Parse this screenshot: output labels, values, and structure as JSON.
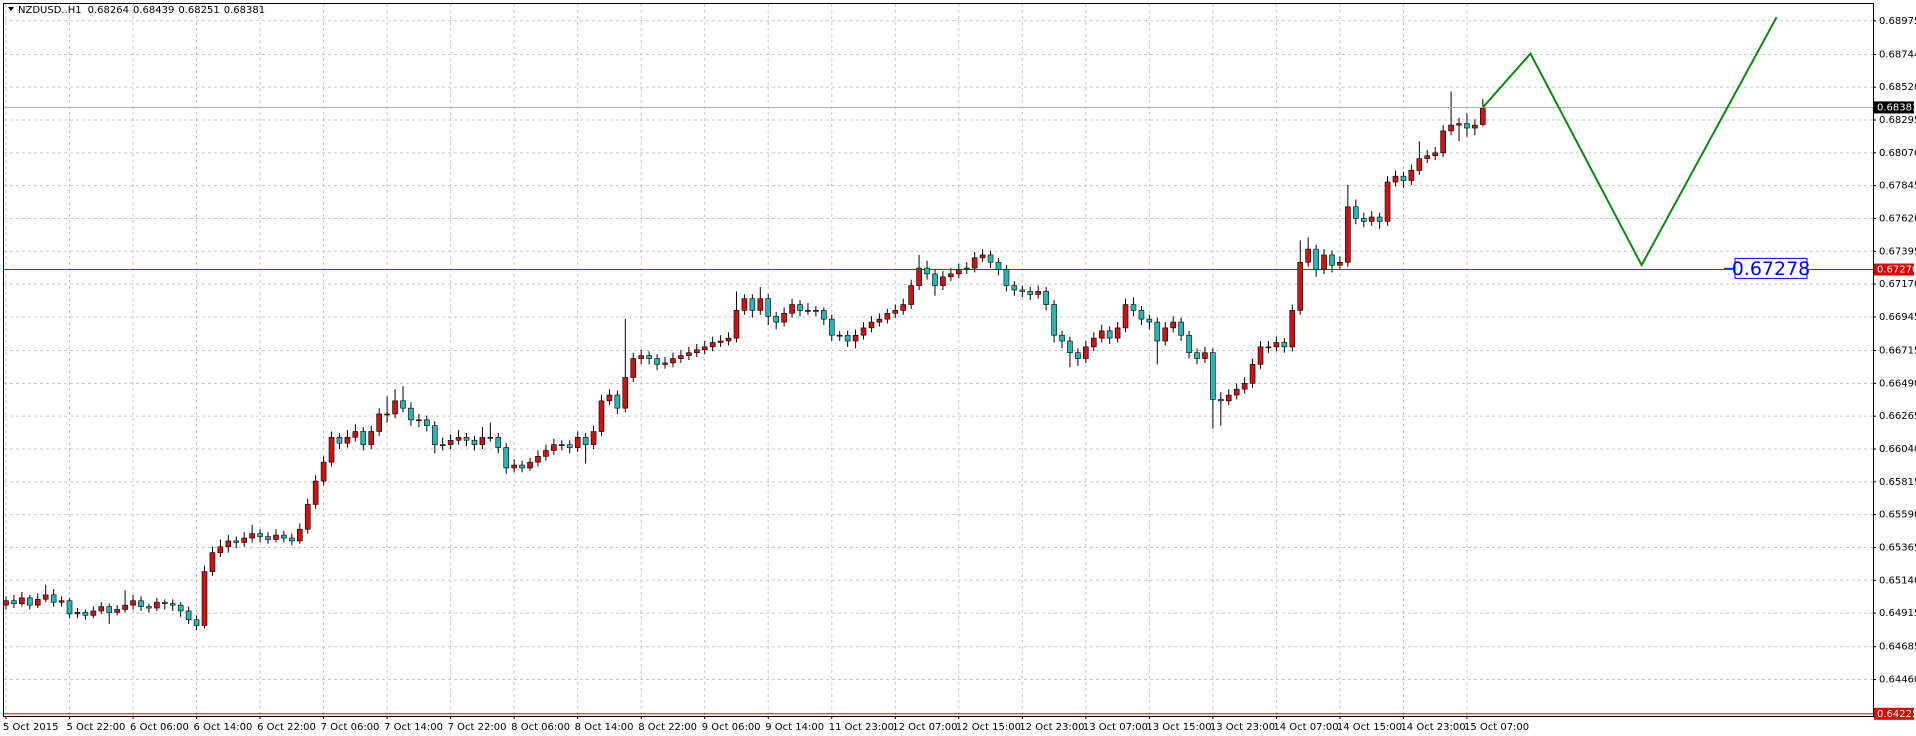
{
  "chart_data": {
    "type": "candlestick",
    "title": "NZDUSD..H1",
    "bull_color": "#c81414",
    "bear_color": "#2ab5b5",
    "grid": true,
    "ylim": [
      0.6421,
      0.6909
    ],
    "yticks": [
      0.68975,
      0.68744,
      {
        "value": 0.6852,
        "label": "0.68520"
      },
      0.68295,
      {
        "value": 0.6807,
        "label": "0.68070"
      },
      0.67845,
      {
        "value": 0.6762,
        "label": "0.67620"
      },
      0.67395,
      {
        "value": 0.6717,
        "label": "0.67170"
      },
      0.66945,
      0.66715,
      {
        "value": 0.6649,
        "label": "0.66490"
      },
      0.66265,
      {
        "value": 0.6604,
        "label": "0.66040"
      },
      0.65815,
      {
        "value": 0.6559,
        "label": "0.65590"
      },
      0.65365,
      {
        "value": 0.6514,
        "label": "0.65140"
      },
      0.64915,
      0.64685,
      {
        "value": 0.6446,
        "label": "0.64460"
      }
    ],
    "levels": [
      {
        "value": 0.6727,
        "label": "0.67270",
        "color": "#e00000"
      },
      {
        "value": 0.64225,
        "color": "#e00000"
      }
    ],
    "price_label": {
      "value": 0.67278,
      "color": "#0000ff"
    },
    "projection": {
      "x": [
        186,
        192,
        206,
        223
      ],
      "values": [
        0.68381,
        0.6875,
        0.673,
        0.69
      ],
      "color": "#0a8a0a"
    },
    "categories": [
      "5 Oct 2015",
      null,
      null,
      null,
      null,
      null,
      null,
      null,
      "5 Oct 22:00",
      null,
      null,
      null,
      null,
      null,
      null,
      null,
      "6 Oct 06:00",
      null,
      null,
      null,
      null,
      null,
      null,
      null,
      "6 Oct 14:00",
      null,
      null,
      null,
      null,
      null,
      null,
      null,
      "6 Oct 22:00",
      null,
      null,
      null,
      null,
      null,
      null,
      null,
      "7 Oct 06:00",
      null,
      null,
      null,
      null,
      null,
      null,
      null,
      "7 Oct 14:00",
      null,
      null,
      null,
      null,
      null,
      null,
      null,
      "7 Oct 22:00",
      null,
      null,
      null,
      null,
      null,
      null,
      null,
      "8 Oct 06:00",
      null,
      null,
      null,
      null,
      null,
      null,
      null,
      "8 Oct 14:00",
      null,
      null,
      null,
      null,
      null,
      null,
      null,
      "8 Oct 22:00",
      null,
      null,
      null,
      null,
      null,
      null,
      null,
      "9 Oct 06:00",
      null,
      null,
      null,
      null,
      null,
      null,
      null,
      "9 Oct 14:00",
      null,
      null,
      null,
      null,
      null,
      null,
      null,
      "11 Oct 23:00",
      null,
      null,
      null,
      null,
      null,
      null,
      null,
      "12 Oct 07:00",
      null,
      null,
      null,
      null,
      null,
      null,
      null,
      "12 Oct 15:00",
      null,
      null,
      null,
      null,
      null,
      null,
      null,
      "12 Oct 23:00",
      null,
      null,
      null,
      null,
      null,
      null,
      null,
      "13 Oct 07:00",
      null,
      null,
      null,
      null,
      null,
      null,
      null,
      "13 Oct 15:00",
      null,
      null,
      null,
      null,
      null,
      null,
      null,
      "13 Oct 23:00",
      null,
      null,
      null,
      null,
      null,
      null,
      null,
      "14 Oct 07:00",
      null,
      null,
      null,
      null,
      null,
      null,
      null,
      "14 Oct 15:00",
      null,
      null,
      null,
      null,
      null,
      null,
      null,
      "14 Oct 23:00",
      null,
      null,
      null,
      null,
      null,
      null,
      null,
      "15 Oct 07:00",
      null,
      null
    ],
    "candles": [
      [
        0.6497,
        0.6503,
        0.6494,
        0.65
      ],
      [
        0.65,
        0.6504,
        0.6495,
        0.6498
      ],
      [
        0.6498,
        0.6506,
        0.6496,
        0.6502
      ],
      [
        0.6502,
        0.6504,
        0.6494,
        0.6497
      ],
      [
        0.6497,
        0.6505,
        0.6495,
        0.6501
      ],
      [
        0.6501,
        0.6511,
        0.6499,
        0.6504
      ],
      [
        0.6504,
        0.6508,
        0.6496,
        0.6499
      ],
      [
        0.6499,
        0.6503,
        0.6496,
        0.65
      ],
      [
        0.65,
        0.6502,
        0.6488,
        0.6491
      ],
      [
        0.6491,
        0.6495,
        0.6488,
        0.6492
      ],
      [
        0.6492,
        0.6494,
        0.6487,
        0.649
      ],
      [
        0.649,
        0.6496,
        0.6488,
        0.6493
      ],
      [
        0.6493,
        0.6499,
        0.6491,
        0.6496
      ],
      [
        0.6496,
        0.6498,
        0.6484,
        0.6492
      ],
      [
        0.6492,
        0.6497,
        0.649,
        0.6494
      ],
      [
        0.6494,
        0.6507,
        0.6492,
        0.6497
      ],
      [
        0.6497,
        0.6504,
        0.6494,
        0.65
      ],
      [
        0.65,
        0.6503,
        0.6493,
        0.6496
      ],
      [
        0.6496,
        0.6498,
        0.6492,
        0.6495
      ],
      [
        0.6495,
        0.6502,
        0.6493,
        0.6499
      ],
      [
        0.6499,
        0.6501,
        0.6494,
        0.6498
      ],
      [
        0.6498,
        0.6501,
        0.6493,
        0.6497
      ],
      [
        0.6497,
        0.6499,
        0.6489,
        0.6493
      ],
      [
        0.6493,
        0.6496,
        0.6484,
        0.6487
      ],
      [
        0.6487,
        0.649,
        0.648,
        0.6483
      ],
      [
        0.6483,
        0.6524,
        0.6481,
        0.652
      ],
      [
        0.652,
        0.6537,
        0.6517,
        0.6533
      ],
      [
        0.6533,
        0.6542,
        0.653,
        0.6537
      ],
      [
        0.6537,
        0.6545,
        0.6533,
        0.6541
      ],
      [
        0.6541,
        0.6544,
        0.6536,
        0.654
      ],
      [
        0.654,
        0.6547,
        0.6537,
        0.6543
      ],
      [
        0.6543,
        0.6552,
        0.654,
        0.6546
      ],
      [
        0.6546,
        0.6549,
        0.654,
        0.6544
      ],
      [
        0.6544,
        0.6547,
        0.6539,
        0.6542
      ],
      [
        0.6542,
        0.6549,
        0.654,
        0.6545
      ],
      [
        0.6545,
        0.6548,
        0.654,
        0.6543
      ],
      [
        0.6543,
        0.6546,
        0.6538,
        0.6541
      ],
      [
        0.6541,
        0.6553,
        0.6539,
        0.6549
      ],
      [
        0.6549,
        0.657,
        0.6546,
        0.6566
      ],
      [
        0.6566,
        0.6586,
        0.6563,
        0.6582
      ],
      [
        0.6582,
        0.6599,
        0.6579,
        0.6595
      ],
      [
        0.6595,
        0.6616,
        0.6592,
        0.6612
      ],
      [
        0.6612,
        0.6615,
        0.6604,
        0.6608
      ],
      [
        0.6608,
        0.6617,
        0.6605,
        0.6612
      ],
      [
        0.6612,
        0.6621,
        0.6609,
        0.6616
      ],
      [
        0.6616,
        0.6619,
        0.6603,
        0.6607
      ],
      [
        0.6607,
        0.662,
        0.6604,
        0.6616
      ],
      [
        0.6616,
        0.6632,
        0.6613,
        0.6628
      ],
      [
        0.6628,
        0.664,
        0.6622,
        0.6628
      ],
      [
        0.6628,
        0.6645,
        0.6625,
        0.6637
      ],
      [
        0.6637,
        0.6647,
        0.6629,
        0.6632
      ],
      [
        0.6632,
        0.6636,
        0.662,
        0.6624
      ],
      [
        0.6624,
        0.6628,
        0.6619,
        0.6624
      ],
      [
        0.6624,
        0.6627,
        0.6616,
        0.662
      ],
      [
        0.662,
        0.6623,
        0.6601,
        0.6607
      ],
      [
        0.6607,
        0.6612,
        0.6603,
        0.6607
      ],
      [
        0.6607,
        0.6614,
        0.6604,
        0.661
      ],
      [
        0.661,
        0.6617,
        0.6607,
        0.6612
      ],
      [
        0.6612,
        0.6615,
        0.6606,
        0.661
      ],
      [
        0.661,
        0.6613,
        0.6603,
        0.6607
      ],
      [
        0.6607,
        0.6619,
        0.6604,
        0.6612
      ],
      [
        0.6612,
        0.6622,
        0.6609,
        0.6612
      ],
      [
        0.6612,
        0.6615,
        0.6601,
        0.6605
      ],
      [
        0.6605,
        0.6608,
        0.6587,
        0.6591
      ],
      [
        0.6591,
        0.6597,
        0.6588,
        0.6593
      ],
      [
        0.6593,
        0.6596,
        0.6588,
        0.6591
      ],
      [
        0.6591,
        0.6598,
        0.6589,
        0.6595
      ],
      [
        0.6595,
        0.6603,
        0.6592,
        0.6599
      ],
      [
        0.6599,
        0.6607,
        0.6596,
        0.6603
      ],
      [
        0.6603,
        0.6611,
        0.66,
        0.6607
      ],
      [
        0.6607,
        0.661,
        0.6603,
        0.6607
      ],
      [
        0.6607,
        0.661,
        0.6601,
        0.6605
      ],
      [
        0.6605,
        0.6616,
        0.6602,
        0.6612
      ],
      [
        0.6612,
        0.6615,
        0.6594,
        0.6607
      ],
      [
        0.6607,
        0.662,
        0.6604,
        0.6616
      ],
      [
        0.6616,
        0.6641,
        0.6613,
        0.6637
      ],
      [
        0.6637,
        0.6645,
        0.6634,
        0.6641
      ],
      [
        0.6641,
        0.6644,
        0.6628,
        0.6632
      ],
      [
        0.6632,
        0.6693,
        0.6629,
        0.6653
      ],
      [
        0.6653,
        0.667,
        0.665,
        0.6666
      ],
      [
        0.6666,
        0.6672,
        0.6662,
        0.6668
      ],
      [
        0.6668,
        0.6671,
        0.6662,
        0.6666
      ],
      [
        0.6666,
        0.6669,
        0.6658,
        0.6662
      ],
      [
        0.6662,
        0.6667,
        0.6659,
        0.6663
      ],
      [
        0.6663,
        0.667,
        0.666,
        0.6666
      ],
      [
        0.6666,
        0.6672,
        0.6663,
        0.6668
      ],
      [
        0.6668,
        0.6674,
        0.6665,
        0.667
      ],
      [
        0.667,
        0.6676,
        0.6667,
        0.6672
      ],
      [
        0.6672,
        0.6678,
        0.6669,
        0.6674
      ],
      [
        0.6674,
        0.6681,
        0.6671,
        0.6677
      ],
      [
        0.6677,
        0.6682,
        0.6674,
        0.6678
      ],
      [
        0.6678,
        0.6684,
        0.6675,
        0.668
      ],
      [
        0.668,
        0.6712,
        0.6677,
        0.6699
      ],
      [
        0.6699,
        0.671,
        0.6696,
        0.6707
      ],
      [
        0.6707,
        0.671,
        0.6694,
        0.6699
      ],
      [
        0.6699,
        0.6715,
        0.6696,
        0.6707
      ],
      [
        0.6707,
        0.671,
        0.6689,
        0.6695
      ],
      [
        0.6695,
        0.6698,
        0.6686,
        0.6691
      ],
      [
        0.6691,
        0.6701,
        0.6688,
        0.6697
      ],
      [
        0.6697,
        0.6707,
        0.6694,
        0.6703
      ],
      [
        0.6703,
        0.6706,
        0.6695,
        0.6699
      ],
      [
        0.6699,
        0.6704,
        0.6696,
        0.6699
      ],
      [
        0.6699,
        0.6702,
        0.6695,
        0.6699
      ],
      [
        0.6699,
        0.6701,
        0.6689,
        0.6693
      ],
      [
        0.6693,
        0.6696,
        0.6678,
        0.6682
      ],
      [
        0.6682,
        0.6685,
        0.6678,
        0.6682
      ],
      [
        0.6682,
        0.6685,
        0.6674,
        0.6678
      ],
      [
        0.6678,
        0.6686,
        0.6673,
        0.6682
      ],
      [
        0.6682,
        0.6691,
        0.6679,
        0.6687
      ],
      [
        0.6687,
        0.6695,
        0.6684,
        0.6691
      ],
      [
        0.6691,
        0.6697,
        0.6688,
        0.6693
      ],
      [
        0.6693,
        0.67,
        0.669,
        0.6697
      ],
      [
        0.6697,
        0.6703,
        0.6694,
        0.6699
      ],
      [
        0.6699,
        0.6707,
        0.6696,
        0.6703
      ],
      [
        0.6703,
        0.672,
        0.67,
        0.6716
      ],
      [
        0.6716,
        0.6737,
        0.6713,
        0.6728
      ],
      [
        0.6728,
        0.6733,
        0.672,
        0.6724
      ],
      [
        0.6724,
        0.6727,
        0.6709,
        0.6716
      ],
      [
        0.6716,
        0.6726,
        0.6713,
        0.6722
      ],
      [
        0.6722,
        0.6728,
        0.6719,
        0.6724
      ],
      [
        0.6724,
        0.6731,
        0.6721,
        0.6727
      ],
      [
        0.6727,
        0.6732,
        0.6724,
        0.6728
      ],
      [
        0.6728,
        0.6739,
        0.6725,
        0.6735
      ],
      [
        0.6735,
        0.6741,
        0.6732,
        0.6737
      ],
      [
        0.6737,
        0.674,
        0.6728,
        0.6732
      ],
      [
        0.6732,
        0.6735,
        0.6723,
        0.6727
      ],
      [
        0.6727,
        0.673,
        0.6712,
        0.6716
      ],
      [
        0.6716,
        0.6719,
        0.6709,
        0.6713
      ],
      [
        0.6713,
        0.6716,
        0.6708,
        0.6712
      ],
      [
        0.6712,
        0.6715,
        0.6706,
        0.671
      ],
      [
        0.671,
        0.6716,
        0.6707,
        0.6712
      ],
      [
        0.6712,
        0.6715,
        0.6699,
        0.6703
      ],
      [
        0.6703,
        0.6706,
        0.6677,
        0.6682
      ],
      [
        0.6682,
        0.6685,
        0.6673,
        0.6678
      ],
      [
        0.6678,
        0.6681,
        0.666,
        0.667
      ],
      [
        0.667,
        0.6673,
        0.6661,
        0.6666
      ],
      [
        0.6666,
        0.6678,
        0.6663,
        0.6674
      ],
      [
        0.6674,
        0.6684,
        0.6671,
        0.668
      ],
      [
        0.668,
        0.6689,
        0.6677,
        0.6685
      ],
      [
        0.6685,
        0.6688,
        0.6676,
        0.668
      ],
      [
        0.668,
        0.6691,
        0.6677,
        0.6687
      ],
      [
        0.6687,
        0.6707,
        0.6684,
        0.6703
      ],
      [
        0.6703,
        0.6708,
        0.6695,
        0.6699
      ],
      [
        0.6699,
        0.6702,
        0.6689,
        0.6693
      ],
      [
        0.6693,
        0.6696,
        0.6686,
        0.6691
      ],
      [
        0.6691,
        0.6694,
        0.6662,
        0.6678
      ],
      [
        0.6678,
        0.6691,
        0.6675,
        0.6687
      ],
      [
        0.6687,
        0.6695,
        0.6684,
        0.6691
      ],
      [
        0.6691,
        0.6694,
        0.6678,
        0.6682
      ],
      [
        0.6682,
        0.6685,
        0.6666,
        0.667
      ],
      [
        0.667,
        0.6673,
        0.6662,
        0.6666
      ],
      [
        0.6666,
        0.6674,
        0.6663,
        0.667
      ],
      [
        0.667,
        0.6673,
        0.6618,
        0.6638
      ],
      [
        0.6638,
        0.6643,
        0.662,
        0.6637
      ],
      [
        0.6637,
        0.6645,
        0.6634,
        0.6641
      ],
      [
        0.6641,
        0.6649,
        0.6638,
        0.6645
      ],
      [
        0.6645,
        0.6653,
        0.6642,
        0.6649
      ],
      [
        0.6649,
        0.6666,
        0.6646,
        0.6662
      ],
      [
        0.6662,
        0.6678,
        0.6659,
        0.6674
      ],
      [
        0.6674,
        0.6678,
        0.667,
        0.6674
      ],
      [
        0.6674,
        0.6681,
        0.6671,
        0.6677
      ],
      [
        0.6677,
        0.668,
        0.667,
        0.6674
      ],
      [
        0.6674,
        0.6703,
        0.6671,
        0.6699
      ],
      [
        0.6699,
        0.6747,
        0.6696,
        0.6732
      ],
      [
        0.6732,
        0.6749,
        0.6729,
        0.6741
      ],
      [
        0.6741,
        0.6744,
        0.6722,
        0.6727
      ],
      [
        0.6727,
        0.6741,
        0.6724,
        0.6737
      ],
      [
        0.6737,
        0.674,
        0.6725,
        0.673
      ],
      [
        0.673,
        0.6736,
        0.6727,
        0.6732
      ],
      [
        0.6732,
        0.6785,
        0.6729,
        0.677
      ],
      [
        0.677,
        0.6775,
        0.6758,
        0.6762
      ],
      [
        0.6762,
        0.6766,
        0.6756,
        0.676
      ],
      [
        0.676,
        0.6767,
        0.6757,
        0.6763
      ],
      [
        0.6763,
        0.6766,
        0.6755,
        0.676
      ],
      [
        0.676,
        0.6791,
        0.6757,
        0.6787
      ],
      [
        0.6787,
        0.6795,
        0.6784,
        0.6791
      ],
      [
        0.6791,
        0.6794,
        0.6783,
        0.6788
      ],
      [
        0.6788,
        0.6799,
        0.6785,
        0.6795
      ],
      [
        0.6795,
        0.6815,
        0.6792,
        0.6803
      ],
      [
        0.6803,
        0.6809,
        0.68,
        0.6805
      ],
      [
        0.6805,
        0.6811,
        0.6802,
        0.6807
      ],
      [
        0.6807,
        0.6826,
        0.6804,
        0.6822
      ],
      [
        0.6822,
        0.6849,
        0.6819,
        0.6826
      ],
      [
        0.6826,
        0.6831,
        0.6815,
        0.6827
      ],
      [
        0.6827,
        0.6834,
        0.6818,
        0.6824
      ],
      [
        0.6824,
        0.683,
        0.6819,
        0.6826
      ],
      [
        0.68264,
        0.68439,
        0.68251,
        0.68381
      ]
    ]
  }
}
